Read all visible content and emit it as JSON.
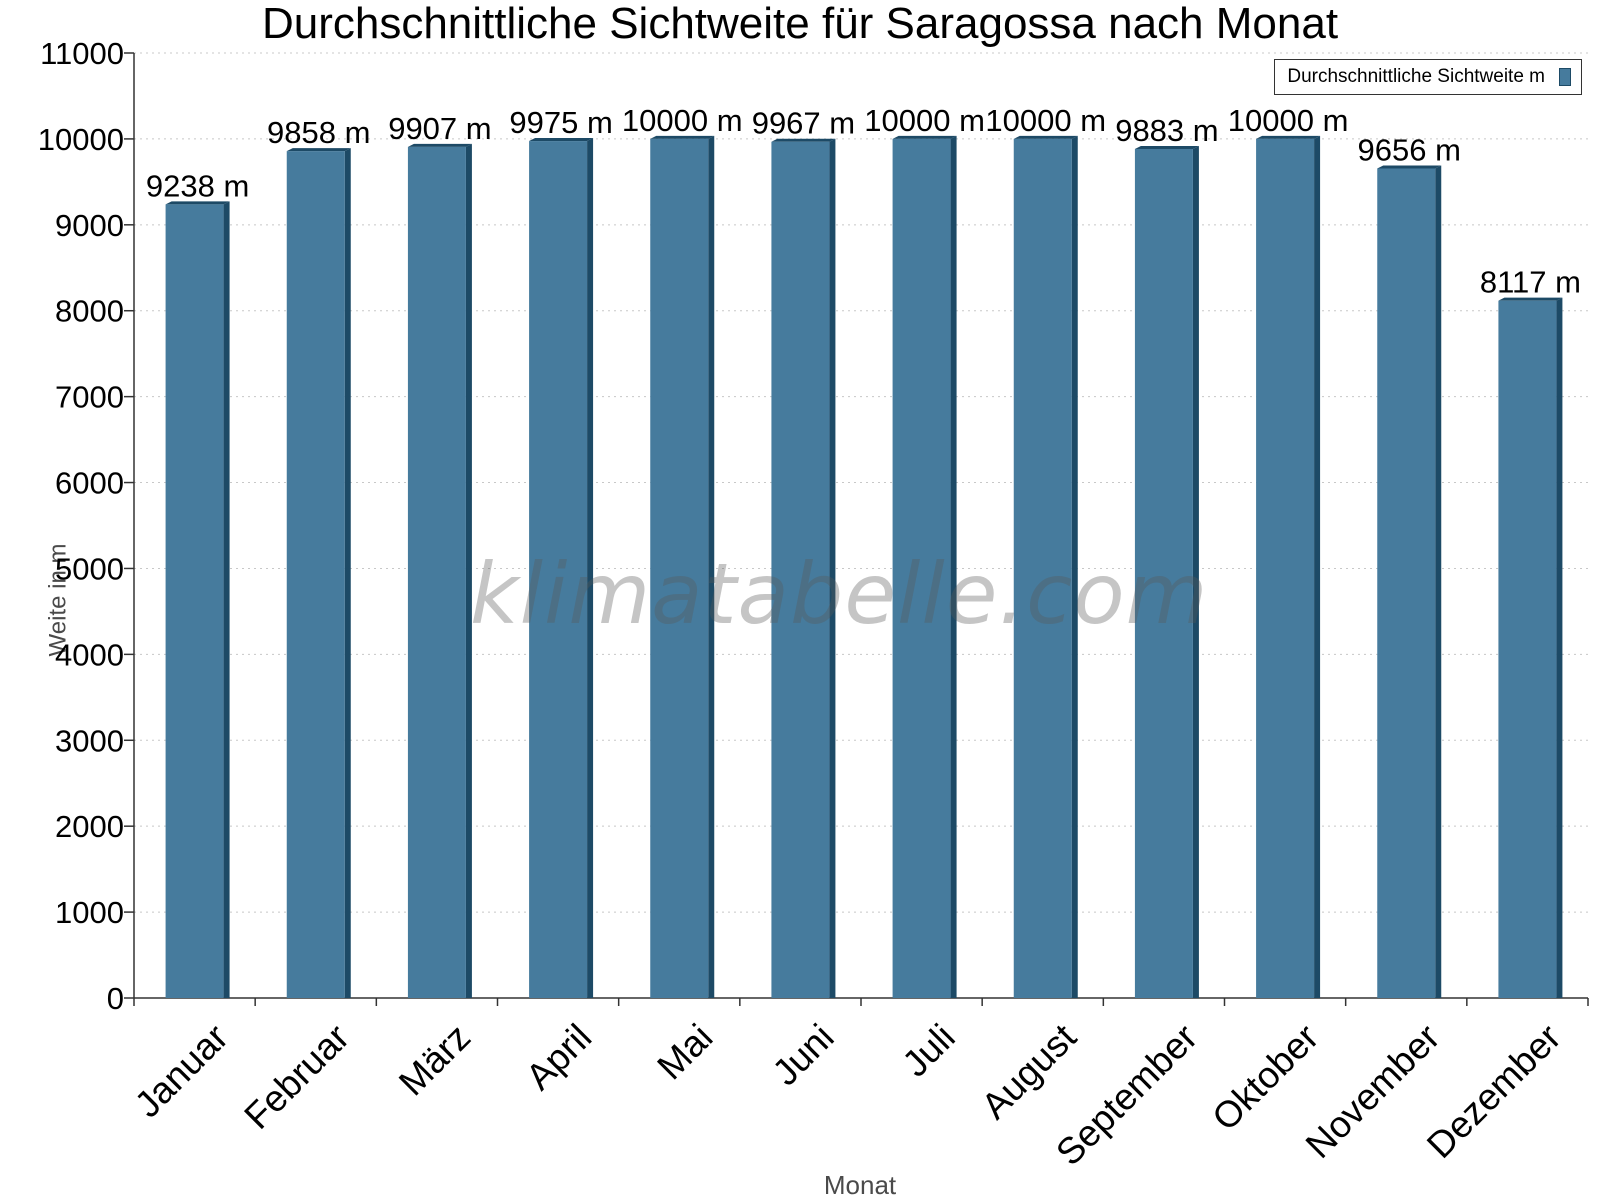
{
  "chart_data": {
    "type": "bar",
    "title": "Durchschnittliche Sichtweite für Saragossa nach Monat",
    "xlabel": "Monat",
    "ylabel": "Weite in m",
    "categories": [
      "Januar",
      "Februar",
      "März",
      "April",
      "Mai",
      "Juni",
      "Juli",
      "August",
      "September",
      "Oktober",
      "November",
      "Dezember"
    ],
    "series": [
      {
        "name": "Durchschnittliche Sichtweite m",
        "values": [
          9238,
          9858,
          9907,
          9975,
          10000,
          9967,
          10000,
          10000,
          9883,
          10000,
          9656,
          8117
        ],
        "labels": [
          "9238 m",
          "9858 m",
          "9907 m",
          "9975 m",
          "10000 m",
          "9967 m",
          "10000 m",
          "10000 m",
          "9883 m",
          "10000 m",
          "9656 m",
          "8117 m"
        ]
      }
    ],
    "ylim": [
      0,
      11000
    ],
    "yticks": [
      "0",
      "1000",
      "2000",
      "3000",
      "4000",
      "5000",
      "6000",
      "7000",
      "8000",
      "9000",
      "10000",
      "11000"
    ],
    "grid": true,
    "legend": "top-right",
    "colors": {
      "bar": "#467b9d",
      "bar_shade": "#1d4a66"
    }
  },
  "watermark": "klimatabelle.com"
}
